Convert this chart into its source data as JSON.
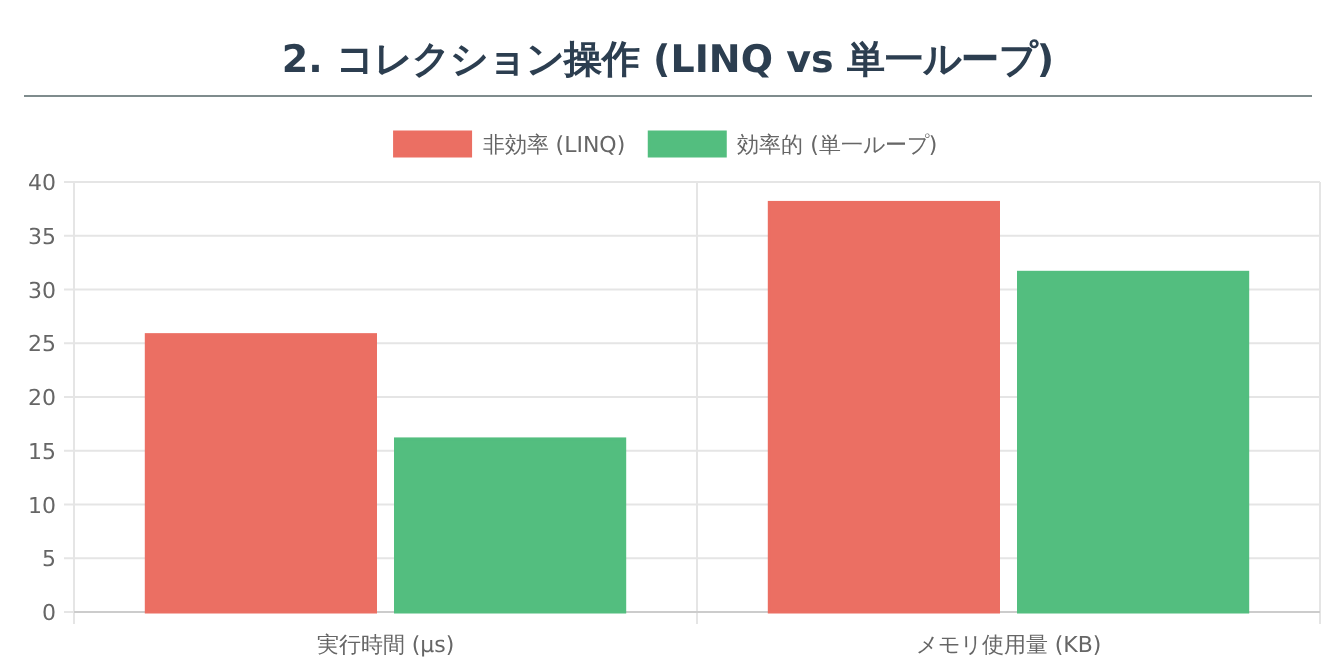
{
  "chart_data": {
    "type": "bar",
    "title": "2. コレクション操作 (LINQ vs 単一ループ)",
    "categories": [
      "実行時間 (μs)",
      "メモリ使用量 (KB)"
    ],
    "series": [
      {
        "name": "非効率 (LINQ)",
        "color": "#eb6f63",
        "values": [
          25.8,
          38.1
        ]
      },
      {
        "name": "効率的 (単一ループ)",
        "color": "#53be7f",
        "values": [
          16.1,
          31.6
        ]
      }
    ],
    "ylim": [
      0,
      40
    ],
    "yticks": [
      0,
      5,
      10,
      15,
      20,
      25,
      30,
      35,
      40
    ],
    "grid": true,
    "legend": "top"
  }
}
